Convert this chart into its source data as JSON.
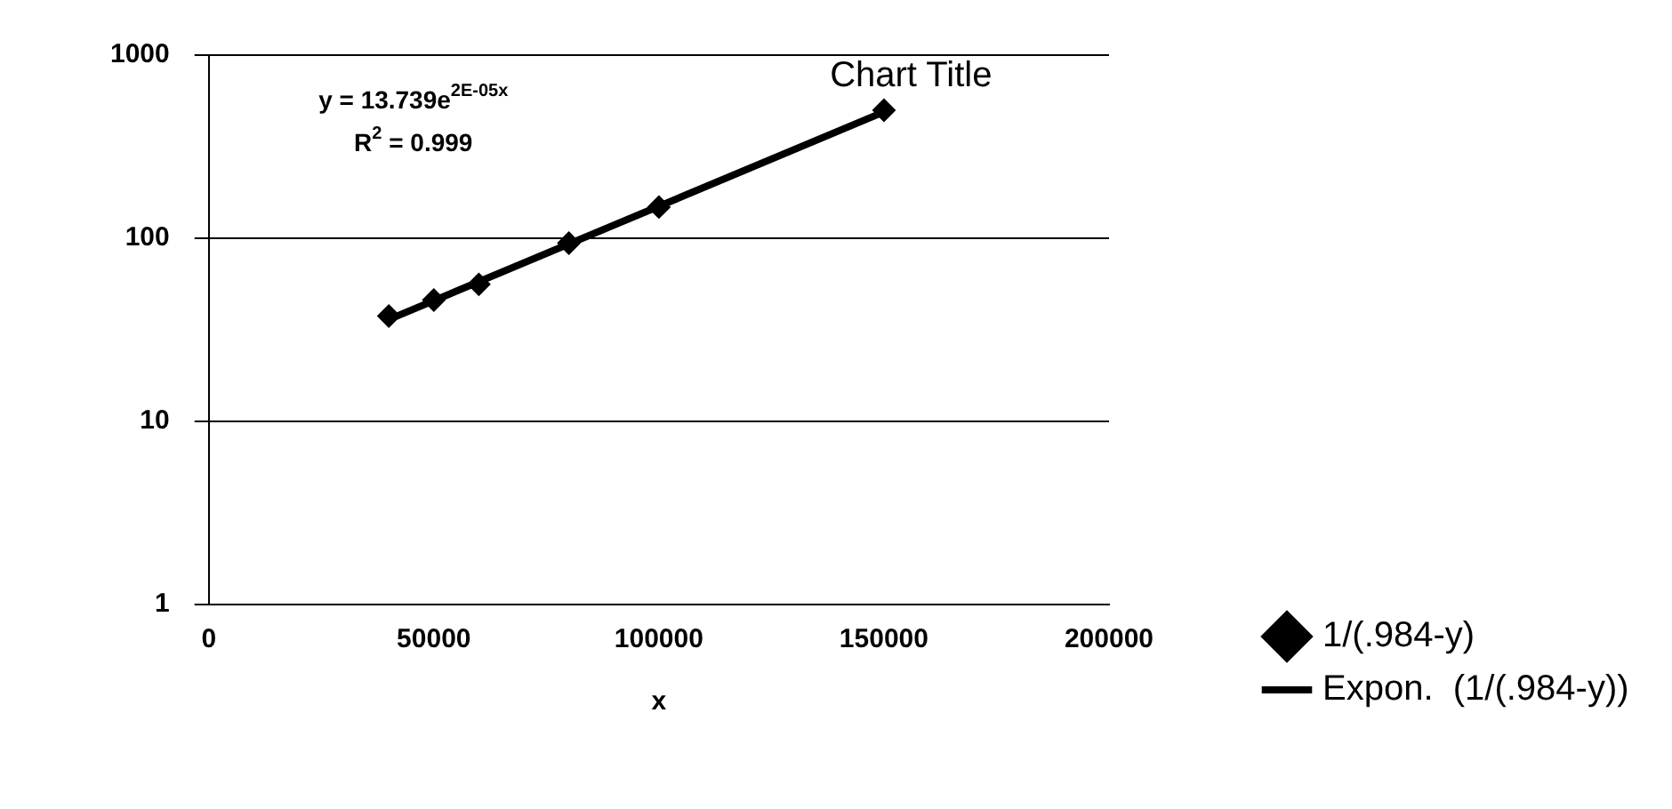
{
  "chart_data": {
    "type": "scatter",
    "title": "Chart Title",
    "xlabel": "x",
    "xlim": [
      0,
      200000
    ],
    "xticks": [
      0,
      50000,
      100000,
      150000,
      200000
    ],
    "ylim": [
      1,
      1000
    ],
    "yticks": [
      1,
      10,
      100,
      1000
    ],
    "log": "y",
    "grid": "y",
    "legend": "bottom right",
    "marker": "diamond",
    "series": [
      {
        "name": "1/(.984-y)",
        "color": "#000000",
        "x": [
          40000,
          50000,
          60000,
          80000,
          100000,
          150000
        ],
        "values": [
          37.6,
          46,
          56,
          94,
          148,
          500
        ]
      },
      {
        "name": "Expon.  (1/(.984-y))",
        "type": "line",
        "marker": "none",
        "color": "#000000",
        "x": [
          40000,
          150000
        ],
        "values": [
          36,
          490
        ]
      }
    ],
    "annotations": [
      "y = 13.739e$^{2E-05x}$",
      "R$^{2}$ = 0.999"
    ]
  }
}
